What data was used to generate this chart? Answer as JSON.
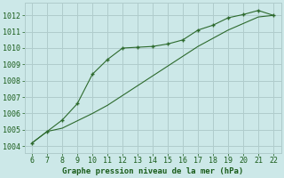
{
  "line1_x": [
    6,
    7,
    8,
    9,
    10,
    11,
    12,
    13,
    14,
    15,
    16,
    17,
    18,
    19,
    20,
    21,
    22
  ],
  "line1_y": [
    1004.2,
    1004.9,
    1005.6,
    1006.6,
    1008.4,
    1009.3,
    1010.0,
    1010.05,
    1010.1,
    1010.25,
    1010.5,
    1011.1,
    1011.4,
    1011.85,
    1012.05,
    1012.3,
    1012.0
  ],
  "line2_x": [
    6,
    7,
    8,
    9,
    10,
    11,
    12,
    13,
    14,
    15,
    16,
    17,
    18,
    19,
    20,
    21,
    22
  ],
  "line2_y": [
    1004.2,
    1004.9,
    1005.1,
    1005.55,
    1006.0,
    1006.5,
    1007.1,
    1007.7,
    1008.3,
    1008.9,
    1009.5,
    1010.1,
    1010.6,
    1011.1,
    1011.5,
    1011.9,
    1012.0
  ],
  "line_color": "#2d6a2d",
  "bg_color": "#cce8e8",
  "grid_color": "#b0cccc",
  "xlabel": "Graphe pression niveau de la mer (hPa)",
  "xlim": [
    5.5,
    22.5
  ],
  "ylim": [
    1003.6,
    1012.75
  ],
  "xticks": [
    6,
    7,
    8,
    9,
    10,
    11,
    12,
    13,
    14,
    15,
    16,
    17,
    18,
    19,
    20,
    21,
    22
  ],
  "yticks": [
    1004,
    1005,
    1006,
    1007,
    1008,
    1009,
    1010,
    1011,
    1012
  ],
  "label_color": "#1a5c1a",
  "tick_fontsize": 6.0,
  "xlabel_fontsize": 6.5
}
